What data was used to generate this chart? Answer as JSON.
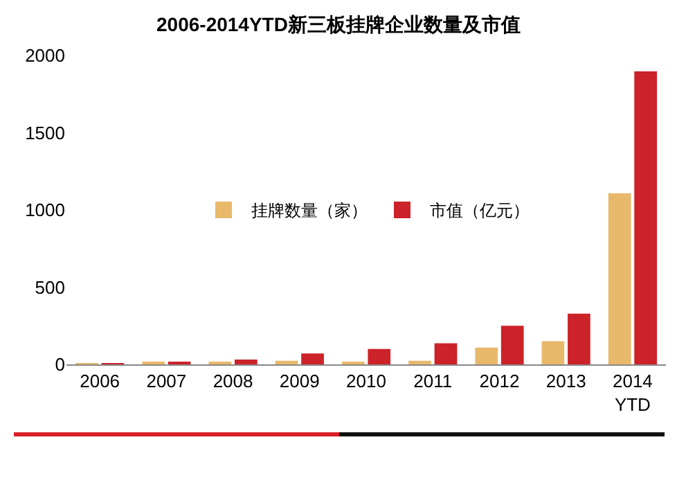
{
  "chart_data": {
    "type": "bar",
    "title": "2006-2014YTD新三板挂牌企业数量及市值",
    "categories": [
      "2006",
      "2007",
      "2008",
      "2009",
      "2010",
      "2011",
      "2012",
      "2013",
      "2014\nYTD"
    ],
    "series": [
      {
        "name": "挂牌数量（家）",
        "color": "#e8b96b",
        "values": [
          5,
          10,
          10,
          24,
          12,
          24,
          109,
          150,
          1108
        ]
      },
      {
        "name": "市值（亿元）",
        "color": "#cc2229",
        "values": [
          5,
          12,
          31,
          71,
          100,
          137,
          250,
          329,
          1897
        ]
      }
    ],
    "ylim": [
      0,
      2000
    ],
    "yticks": [
      0,
      500,
      1000,
      1500,
      2000
    ],
    "grid": false,
    "legend": "center"
  }
}
